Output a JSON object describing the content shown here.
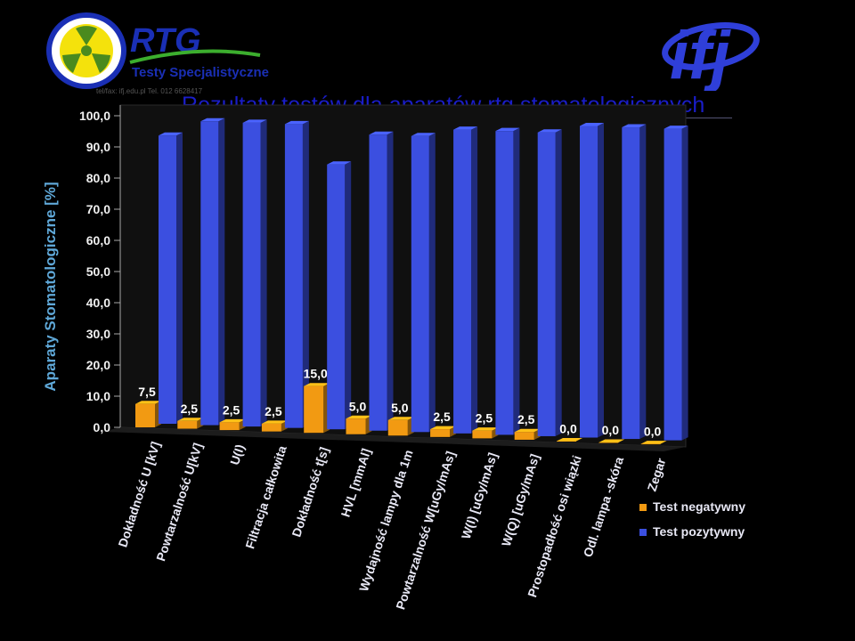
{
  "slide": {
    "title": "Rezultaty testów dla aparatów rtg stomatologicznych"
  },
  "logos": {
    "rtg": {
      "brand": "RTG",
      "subtitle": "Testy Specjalistyczne",
      "contact": "tel/fax: ifj.edu.pl Tel. 012 6628417"
    },
    "ifj": {
      "brand": "ifj"
    }
  },
  "colors": {
    "background": "#000000",
    "title": "#1a1dc9",
    "negative": "#f29a12",
    "positive": "#3b4fe0",
    "axis_label": "#5fa8d8",
    "tick_text": "#f0f0f0"
  },
  "chart_data": {
    "type": "bar",
    "orientation": "vertical-3d",
    "ylabel": "Aparaty Stomatologiczne [%]",
    "ylim": [
      0,
      100
    ],
    "yticks": [
      "0,0",
      "10,0",
      "20,0",
      "30,0",
      "40,0",
      "50,0",
      "60,0",
      "70,0",
      "80,0",
      "90,0",
      "100,0"
    ],
    "legend_position": "bottom-right",
    "categories": [
      "Dokładność U [kV]",
      "Powtarzalność U[kV]",
      "U(I)",
      "Filtracja całkowita",
      "Dokładność t[s]",
      "HVL [mmAl]",
      "Wydajność lampy dla 1m",
      "Powtarzalność W[uGy/mAs]",
      "W(I) [uGy/mAs]",
      "W(Q) [uGy/mAs]",
      "Prostopadłość osi wiązki",
      "Odl. lampa -skóra",
      "Zegar"
    ],
    "series": [
      {
        "name": "Test negatywny",
        "values": [
          7.5,
          2.5,
          2.5,
          2.5,
          15.0,
          5.0,
          5.0,
          2.5,
          2.5,
          2.5,
          0.0,
          0.0,
          0.0
        ],
        "labels": [
          "7,5",
          "2,5",
          "2,5",
          "2,5",
          "15,0",
          "5,0",
          "5,0",
          "2,5",
          "2,5",
          "2,5",
          "0,0",
          "0,0",
          "0,0"
        ]
      },
      {
        "name": "Test pozytywny",
        "values": [
          92.5,
          97.5,
          97.5,
          97.5,
          85.0,
          95.0,
          95.0,
          97.5,
          97.5,
          97.5,
          100.0,
          100.0,
          100.0
        ]
      }
    ]
  }
}
